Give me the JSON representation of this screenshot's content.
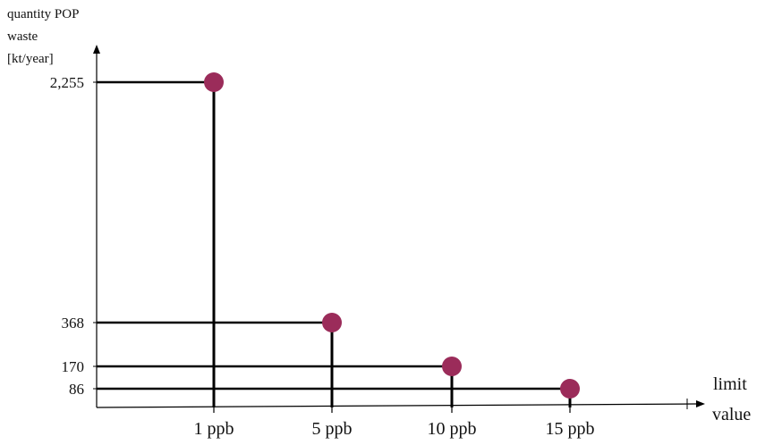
{
  "chart_data": {
    "type": "scatter",
    "ylabel_lines": [
      "quantity POP",
      "waste",
      "[kt/year]"
    ],
    "xlabel_lines": [
      "limit",
      "value"
    ],
    "categories": [
      "1 ppb",
      "5 ppb",
      "10 ppb",
      "15 ppb"
    ],
    "values": [
      2255,
      368,
      170,
      86
    ],
    "ytick_labels": [
      "2,255",
      "368",
      "170",
      "86"
    ],
    "ylim": [
      0,
      2700
    ],
    "grid": false,
    "marker_color": "#9b2c5a"
  }
}
